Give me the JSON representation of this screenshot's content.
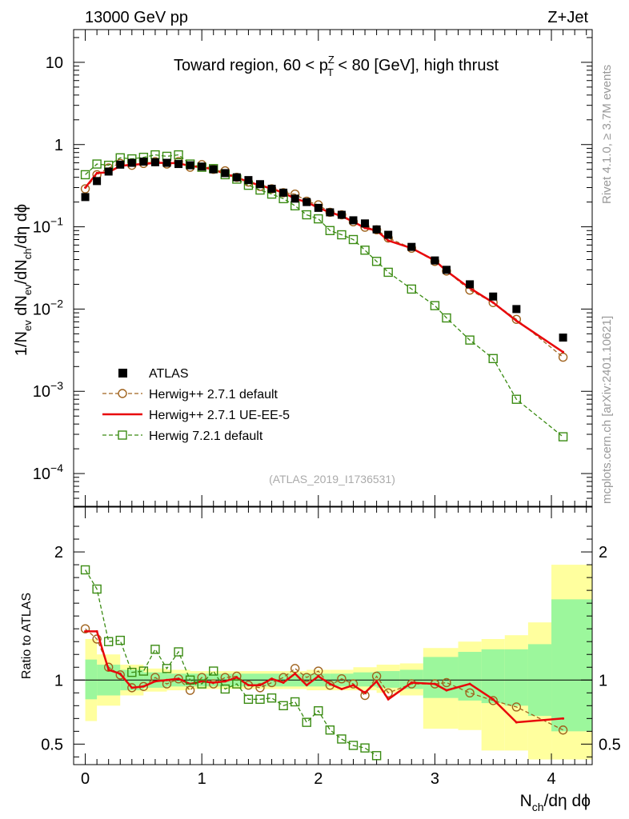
{
  "header": {
    "left": "13000 GeV pp",
    "right": "Z+Jet"
  },
  "side_labels": {
    "rivet": "Rivet 4.1.0, ≥ 3.7M events",
    "mcplots": "mcplots.cern.ch [arXiv:2401.10621]"
  },
  "chart_data": [
    {
      "type": "scatter",
      "panel": "main",
      "title_parts": {
        "prefix": "Toward region, 60 < p",
        "sup": "Z",
        "sub": "T",
        "suffix": " < 80 [GeV], high thrust"
      },
      "ylabel_parts": [
        "1/N",
        "ev",
        " dN",
        "ev",
        "/dN",
        "ch",
        "/dη dϕ"
      ],
      "xlabel_parts": [
        "N",
        "ch",
        "/dη dϕ"
      ],
      "yscale": "log",
      "ylim": [
        4e-05,
        25
      ],
      "xlim": [
        -0.1,
        4.35
      ],
      "yticks": [
        {
          "value": 10,
          "base": "10",
          "exp": ""
        },
        {
          "value": 1,
          "base": "1",
          "exp": ""
        },
        {
          "value": 0.1,
          "base": "10",
          "exp": "−1"
        },
        {
          "value": 0.01,
          "base": "10",
          "exp": "−2"
        },
        {
          "value": 0.001,
          "base": "10",
          "exp": "−3"
        },
        {
          "value": 0.0001,
          "base": "10",
          "exp": "−4"
        }
      ],
      "watermark": "(ATLAS_2019_I1736531)",
      "legend": [
        {
          "label": "ATLAS",
          "style": "data"
        },
        {
          "label": "Herwig++ 2.7.1 default",
          "style": "circle-dashed",
          "color": "#a0631e"
        },
        {
          "label": "Herwig++ 2.7.1 UE-EE-5",
          "style": "line",
          "color": "#e8070b"
        },
        {
          "label": "Herwig 7.2.1 default",
          "style": "square-dashed",
          "color": "#3a8b12"
        }
      ],
      "series": [
        {
          "name": "ATLAS",
          "x": [
            0,
            0.1,
            0.2,
            0.3,
            0.4,
            0.5,
            0.6,
            0.7,
            0.8,
            0.9,
            1.0,
            1.1,
            1.2,
            1.3,
            1.4,
            1.5,
            1.6,
            1.7,
            1.8,
            1.9,
            2.0,
            2.1,
            2.2,
            2.3,
            2.4,
            2.5,
            2.6,
            2.8,
            3.0,
            3.1,
            3.3,
            3.5,
            3.7,
            4.1
          ],
          "values": [
            0.23,
            0.36,
            0.47,
            0.57,
            0.6,
            0.62,
            0.61,
            0.6,
            0.58,
            0.56,
            0.54,
            0.5,
            0.45,
            0.4,
            0.37,
            0.33,
            0.29,
            0.26,
            0.22,
            0.2,
            0.17,
            0.15,
            0.14,
            0.12,
            0.11,
            0.093,
            0.08,
            0.057,
            0.039,
            0.03,
            0.02,
            0.0142,
            0.01,
            0.0045
          ]
        },
        {
          "name": "Herwig++ 2.7.1 default",
          "x": [
            0,
            0.1,
            0.2,
            0.3,
            0.4,
            0.5,
            0.6,
            0.7,
            0.8,
            0.9,
            1.0,
            1.1,
            1.2,
            1.3,
            1.4,
            1.5,
            1.6,
            1.7,
            1.8,
            1.9,
            2.0,
            2.1,
            2.2,
            2.3,
            2.4,
            2.5,
            2.6,
            2.8,
            3.0,
            3.1,
            3.3,
            3.5,
            3.7,
            4.1
          ],
          "values": [
            0.29,
            0.43,
            0.52,
            0.59,
            0.56,
            0.59,
            0.62,
            0.58,
            0.62,
            0.53,
            0.57,
            0.5,
            0.48,
            0.4,
            0.35,
            0.31,
            0.29,
            0.26,
            0.25,
            0.205,
            0.185,
            0.15,
            0.14,
            0.115,
            0.099,
            0.092,
            0.073,
            0.055,
            0.038,
            0.029,
            0.017,
            0.012,
            0.0075,
            0.0026
          ]
        },
        {
          "name": "Herwig++ 2.7.1 UE-EE-5",
          "x": [
            0,
            0.1,
            0.2,
            0.3,
            0.4,
            0.5,
            0.6,
            0.7,
            0.8,
            0.9,
            1.0,
            1.1,
            1.2,
            1.3,
            1.4,
            1.5,
            1.6,
            1.7,
            1.8,
            1.9,
            2.0,
            2.1,
            2.2,
            2.3,
            2.4,
            2.5,
            2.6,
            2.8,
            3.0,
            3.1,
            3.3,
            3.5,
            3.7,
            4.1
          ],
          "values": [
            0.3,
            0.45,
            0.46,
            0.55,
            0.57,
            0.58,
            0.6,
            0.6,
            0.59,
            0.55,
            0.53,
            0.5,
            0.44,
            0.4,
            0.35,
            0.32,
            0.29,
            0.26,
            0.22,
            0.2,
            0.17,
            0.15,
            0.135,
            0.115,
            0.097,
            0.09,
            0.068,
            0.055,
            0.039,
            0.029,
            0.018,
            0.012,
            0.0072,
            0.003
          ]
        },
        {
          "name": "Herwig 7.2.1 default",
          "x": [
            0,
            0.1,
            0.2,
            0.3,
            0.4,
            0.5,
            0.6,
            0.7,
            0.8,
            0.9,
            1.0,
            1.1,
            1.2,
            1.3,
            1.4,
            1.5,
            1.6,
            1.7,
            1.8,
            1.9,
            2.0,
            2.1,
            2.2,
            2.3,
            2.4,
            2.5,
            2.6,
            2.8,
            3.0,
            3.1,
            3.3,
            3.5,
            3.7,
            4.1
          ],
          "values": [
            0.43,
            0.58,
            0.56,
            0.69,
            0.67,
            0.7,
            0.75,
            0.72,
            0.75,
            0.58,
            0.53,
            0.51,
            0.43,
            0.38,
            0.32,
            0.28,
            0.25,
            0.22,
            0.18,
            0.14,
            0.125,
            0.09,
            0.08,
            0.07,
            0.052,
            0.038,
            0.028,
            0.0175,
            0.011,
            0.0078,
            0.0042,
            0.0025,
            0.0008,
            0.00028
          ]
        }
      ]
    },
    {
      "type": "scatter",
      "panel": "ratio",
      "ylabel": "Ratio to ATLAS",
      "ylim": [
        0.34,
        2.35
      ],
      "xlim": [
        -0.1,
        4.35
      ],
      "yticks": [
        {
          "value": 2,
          "label": "2"
        },
        {
          "value": 1,
          "label": "1"
        },
        {
          "value": 0.5,
          "label": "0.5"
        }
      ],
      "xticks": [
        {
          "value": 0,
          "label": "0"
        },
        {
          "value": 1,
          "label": "1"
        },
        {
          "value": 2,
          "label": "2"
        },
        {
          "value": 3,
          "label": "3"
        },
        {
          "value": 4,
          "label": "4"
        }
      ],
      "bands": {
        "edges": [
          0,
          0.1,
          0.3,
          0.5,
          0.7,
          0.9,
          1.1,
          1.3,
          1.5,
          1.7,
          1.9,
          2.1,
          2.3,
          2.5,
          2.7,
          2.9,
          3.2,
          3.4,
          3.6,
          3.8,
          4.0,
          4.4
        ],
        "yellow": [
          [
            0.68,
            1.32
          ],
          [
            0.8,
            1.2
          ],
          [
            0.88,
            1.12
          ],
          [
            0.91,
            1.09
          ],
          [
            0.92,
            1.08
          ],
          [
            0.93,
            1.07
          ],
          [
            0.93,
            1.07
          ],
          [
            0.93,
            1.07
          ],
          [
            0.93,
            1.07
          ],
          [
            0.93,
            1.07
          ],
          [
            0.92,
            1.08
          ],
          [
            0.92,
            1.08
          ],
          [
            0.92,
            1.1
          ],
          [
            0.9,
            1.12
          ],
          [
            0.88,
            1.13
          ],
          [
            0.62,
            1.25
          ],
          [
            0.61,
            1.3
          ],
          [
            0.45,
            1.32
          ],
          [
            0.45,
            1.35
          ],
          [
            0.38,
            1.45
          ],
          [
            0.38,
            1.9
          ]
        ],
        "green": [
          [
            0.85,
            1.16
          ],
          [
            0.88,
            1.12
          ],
          [
            0.92,
            1.08
          ],
          [
            0.94,
            1.06
          ],
          [
            0.95,
            1.05
          ],
          [
            0.95,
            1.05
          ],
          [
            0.95,
            1.05
          ],
          [
            0.95,
            1.05
          ],
          [
            0.95,
            1.05
          ],
          [
            0.95,
            1.05
          ],
          [
            0.95,
            1.05
          ],
          [
            0.95,
            1.05
          ],
          [
            0.95,
            1.06
          ],
          [
            0.94,
            1.07
          ],
          [
            0.93,
            1.08
          ],
          [
            0.86,
            1.18
          ],
          [
            0.84,
            1.22
          ],
          [
            0.82,
            1.24
          ],
          [
            0.8,
            1.24
          ],
          [
            0.72,
            1.28
          ],
          [
            0.6,
            1.63
          ]
        ]
      },
      "series": [
        {
          "name": "Herwig++ 2.7.1 default",
          "x": [
            0,
            0.1,
            0.2,
            0.3,
            0.4,
            0.5,
            0.6,
            0.7,
            0.8,
            0.9,
            1.0,
            1.1,
            1.2,
            1.3,
            1.4,
            1.5,
            1.6,
            1.7,
            1.8,
            1.9,
            2.0,
            2.1,
            2.2,
            2.3,
            2.4,
            2.5,
            2.6,
            2.8,
            3.0,
            3.1,
            3.3,
            3.5,
            3.7,
            4.1
          ],
          "values": [
            1.4,
            1.32,
            1.1,
            1.04,
            0.94,
            0.95,
            1.02,
            0.97,
            1.01,
            0.92,
            1.02,
            0.97,
            1.02,
            1.03,
            0.96,
            0.94,
            0.98,
            1.02,
            1.09,
            1.02,
            1.07,
            0.96,
            1.01,
            0.97,
            0.88,
            1.03,
            0.9,
            0.97,
            0.97,
            0.98,
            0.9,
            0.84,
            0.79,
            0.61
          ]
        },
        {
          "name": "Herwig++ 2.7.1 UE-EE-5",
          "x": [
            0,
            0.1,
            0.2,
            0.3,
            0.4,
            0.5,
            0.6,
            0.7,
            0.8,
            0.9,
            1.0,
            1.1,
            1.2,
            1.3,
            1.4,
            1.5,
            1.6,
            1.7,
            1.8,
            1.9,
            2.0,
            2.1,
            2.2,
            2.3,
            2.4,
            2.5,
            2.6,
            2.8,
            3.0,
            3.1,
            3.3,
            3.5,
            3.7,
            4.1
          ],
          "values": [
            1.38,
            1.38,
            1.08,
            1.05,
            0.94,
            0.95,
            0.99,
            1.0,
            1.01,
            0.97,
            0.99,
            0.98,
            0.99,
            1.02,
            0.96,
            0.96,
            1.01,
            0.98,
            1.05,
            0.96,
            1.03,
            0.97,
            0.93,
            0.96,
            0.9,
            0.99,
            0.85,
            0.98,
            0.97,
            0.92,
            0.97,
            0.85,
            0.67,
            0.7
          ]
        },
        {
          "name": "Herwig 7.2.1 default",
          "x": [
            0,
            0.1,
            0.2,
            0.3,
            0.4,
            0.5,
            0.6,
            0.7,
            0.8,
            0.9,
            1.0,
            1.1,
            1.2,
            1.3,
            1.4,
            1.5,
            1.6,
            1.7,
            1.8,
            1.9,
            2.0,
            2.1,
            2.2,
            2.3,
            2.4,
            2.5
          ],
          "values": [
            1.86,
            1.71,
            1.3,
            1.31,
            1.06,
            1.07,
            1.24,
            1.09,
            1.22,
            1.0,
            0.97,
            1.07,
            0.93,
            0.97,
            0.85,
            0.85,
            0.86,
            0.8,
            0.83,
            0.67,
            0.76,
            0.61,
            0.54,
            0.49,
            0.47,
            0.41
          ]
        }
      ]
    }
  ]
}
